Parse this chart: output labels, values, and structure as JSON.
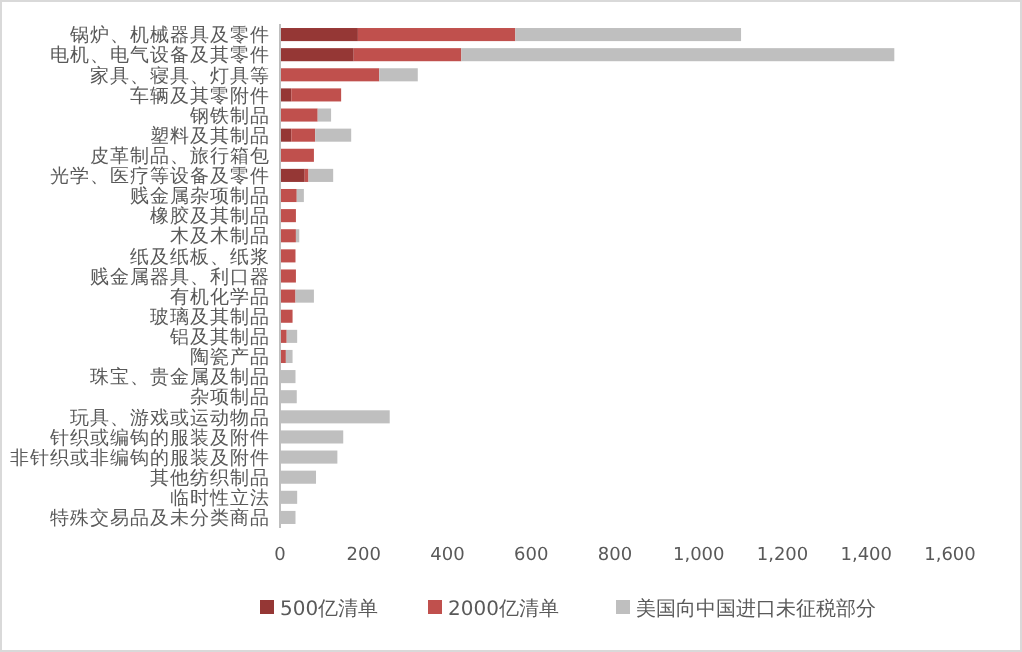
{
  "chart_data": {
    "type": "bar",
    "orientation": "horizontal",
    "stacked": true,
    "legend": "bottom",
    "grid": false,
    "categories": [
      "锅炉、机械器具及零件",
      "电机、电气设备及其零件",
      "家具、寝具、灯具等",
      "车辆及其零附件",
      "钢铁制品",
      "塑料及其制品",
      "皮革制品、旅行箱包",
      "光学、医疗等设备及零件",
      "贱金属杂项制品",
      "橡胶及其制品",
      "木及木制品",
      "纸及纸板、纸浆",
      "贱金属器具、利口器",
      "有机化学品",
      "玻璃及其制品",
      "铝及其制品",
      "陶瓷产品",
      "珠宝、贵金属及制品",
      "杂项制品",
      "玩具、游戏或运动物品",
      "针织或编钩的服装及附件",
      "非针织或非编钩的服装及附件",
      "其他纺织制品",
      "临时性立法",
      "特殊交易品及未分类商品"
    ],
    "xlim": [
      0,
      1600
    ],
    "xticks": [
      {
        "value": 0,
        "label": "0"
      },
      {
        "value": 200,
        "label": "200"
      },
      {
        "value": 400,
        "label": "400"
      },
      {
        "value": 600,
        "label": "600"
      },
      {
        "value": 800,
        "label": "800"
      },
      {
        "value": 1000,
        "label": "1,000"
      },
      {
        "value": 1200,
        "label": "1,200"
      },
      {
        "value": 1400,
        "label": "1,400"
      },
      {
        "value": 1600,
        "label": "1,600"
      }
    ],
    "series": [
      {
        "name": "500亿清单",
        "color": "#953735",
        "values": [
          186,
          176,
          0,
          27,
          0,
          27,
          0,
          59,
          0,
          0,
          0,
          0,
          0,
          0,
          0,
          0,
          0,
          0,
          0,
          0,
          0,
          0,
          0,
          0,
          0
        ]
      },
      {
        "name": "2000亿清单",
        "color": "#c0504d",
        "values": [
          376,
          257,
          237,
          119,
          90,
          57,
          81,
          9,
          40,
          38,
          38,
          37,
          38,
          37,
          30,
          16,
          14,
          0,
          0,
          0,
          0,
          0,
          0,
          0,
          0
        ]
      },
      {
        "name": "美国向中国进口未征税部分",
        "color": "#bfbfbf",
        "values": [
          539,
          1034,
          92,
          null,
          32,
          86,
          0,
          59,
          17,
          0,
          8,
          0,
          null,
          44,
          null,
          25,
          16,
          37,
          40,
          262,
          151,
          137,
          86,
          41,
          37
        ]
      }
    ]
  }
}
